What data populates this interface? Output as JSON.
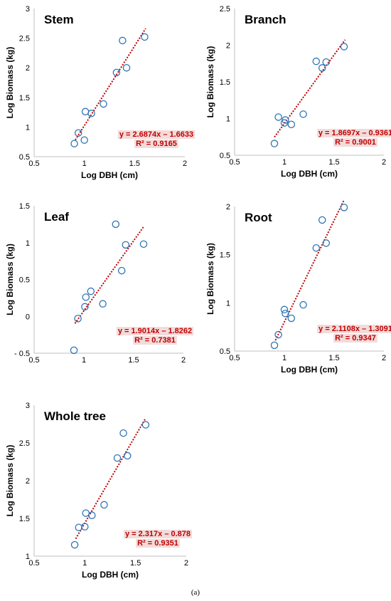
{
  "colors": {
    "marker": "#2e75b6",
    "trend": "#c00000",
    "eq_text": "#c00000",
    "eq_bg": "#f2dcdb"
  },
  "caption": "(a)",
  "chart_data": [
    {
      "type": "scatter",
      "title": "Stem",
      "xlabel": "Log DBH (cm)",
      "ylabel": "Log Biomass (kg)",
      "xlim": [
        0.5,
        2
      ],
      "ylim": [
        0.5,
        3
      ],
      "xticks": [
        "0.5",
        "1",
        "1.5",
        "2"
      ],
      "yticks": [
        "0.5",
        "1",
        "1.5",
        "2",
        "2.5",
        "3"
      ],
      "x": [
        0.9,
        0.94,
        1.0,
        1.01,
        1.07,
        1.19,
        1.32,
        1.38,
        1.42,
        1.6
      ],
      "y": [
        0.72,
        0.9,
        0.78,
        1.26,
        1.23,
        1.39,
        1.92,
        2.46,
        2.0,
        2.52
      ],
      "trend": {
        "slope": 2.6874,
        "intercept": -1.6633,
        "x_range": [
          0.91,
          1.61
        ]
      },
      "equation": "y = 2.6874x – 1.6633",
      "r2": "R² = 0.9165"
    },
    {
      "type": "scatter",
      "title": "Branch",
      "xlabel": "Log DBH (cm)",
      "ylabel": "Log Biomass (kg)",
      "xlim": [
        0.5,
        2
      ],
      "ylim": [
        0.5,
        2.5
      ],
      "xticks": [
        "0.5",
        "1",
        "1.5",
        "2"
      ],
      "yticks": [
        "0.5",
        "1",
        "1.5",
        "2",
        "2.5"
      ],
      "x": [
        0.9,
        0.94,
        1.0,
        1.01,
        1.07,
        1.19,
        1.32,
        1.38,
        1.42,
        1.6
      ],
      "y": [
        0.66,
        1.02,
        0.94,
        0.98,
        0.92,
        1.06,
        1.78,
        1.69,
        1.77,
        1.98
      ],
      "trend": {
        "slope": 1.8697,
        "intercept": -0.9361,
        "x_range": [
          0.9,
          1.61
        ]
      },
      "equation": "y = 1.8697x – 0.9361",
      "r2": "R² = 0.9001"
    },
    {
      "type": "scatter",
      "title": "Leaf",
      "xlabel": "",
      "ylabel": "Log Biomass (kg)",
      "xlim": [
        0.5,
        2
      ],
      "ylim": [
        -0.5,
        1.5
      ],
      "xticks": [
        "0.5",
        "1",
        "1.5",
        "2"
      ],
      "yticks": [
        "- 0.5",
        "0",
        "0.5",
        "1",
        "1.5"
      ],
      "x": [
        0.9,
        0.94,
        1.01,
        1.02,
        1.07,
        1.19,
        1.32,
        1.38,
        1.42,
        1.6
      ],
      "y": [
        -0.46,
        -0.03,
        0.13,
        0.26,
        0.34,
        0.17,
        1.25,
        0.62,
        0.97,
        0.98
      ],
      "trend": {
        "slope": 1.9014,
        "intercept": -1.8262,
        "x_range": [
          0.91,
          1.6
        ]
      },
      "equation": "y = 1.9014x – 1.8262",
      "r2": "R² = 0.7381"
    },
    {
      "type": "scatter",
      "title": "Root",
      "xlabel": "Log DBH (cm)",
      "ylabel": "Log Biomass (kg)",
      "xlim": [
        0.5,
        2
      ],
      "ylim": [
        0.5,
        2
      ],
      "xticks": [
        "0.5",
        "1",
        "1.5",
        "2"
      ],
      "yticks": [
        "0.5",
        "1",
        "1.5",
        "2"
      ],
      "x": [
        0.9,
        0.94,
        1.0,
        1.01,
        1.07,
        1.19,
        1.32,
        1.38,
        1.42,
        1.6
      ],
      "y": [
        0.56,
        0.67,
        0.93,
        0.89,
        0.84,
        0.98,
        1.57,
        1.86,
        1.62,
        1.99
      ],
      "trend": {
        "slope": 2.1108,
        "intercept": -1.3091,
        "x_range": [
          0.91,
          1.6
        ]
      },
      "equation": "y = 2.1108x – 1.3091",
      "r2": "R² = 0.9347"
    },
    {
      "type": "scatter",
      "title": "Whole tree",
      "xlabel": "Log DBH (cm)",
      "ylabel": "Log Biomass (kg)",
      "xlim": [
        0.5,
        2
      ],
      "ylim": [
        1,
        3
      ],
      "xticks": [
        "0.5",
        "1",
        "1.5",
        "2"
      ],
      "yticks": [
        "1",
        "1.5",
        "2",
        "2.5",
        "3"
      ],
      "x": [
        0.9,
        0.94,
        1.0,
        1.01,
        1.07,
        1.19,
        1.32,
        1.38,
        1.42,
        1.6
      ],
      "y": [
        1.15,
        1.38,
        1.39,
        1.57,
        1.54,
        1.68,
        2.3,
        2.63,
        2.33,
        2.74
      ],
      "trend": {
        "slope": 2.317,
        "intercept": -0.878,
        "x_range": [
          0.91,
          1.6
        ]
      },
      "equation": "y = 2.317x – 0.878",
      "r2": "R² = 0.9351"
    }
  ]
}
